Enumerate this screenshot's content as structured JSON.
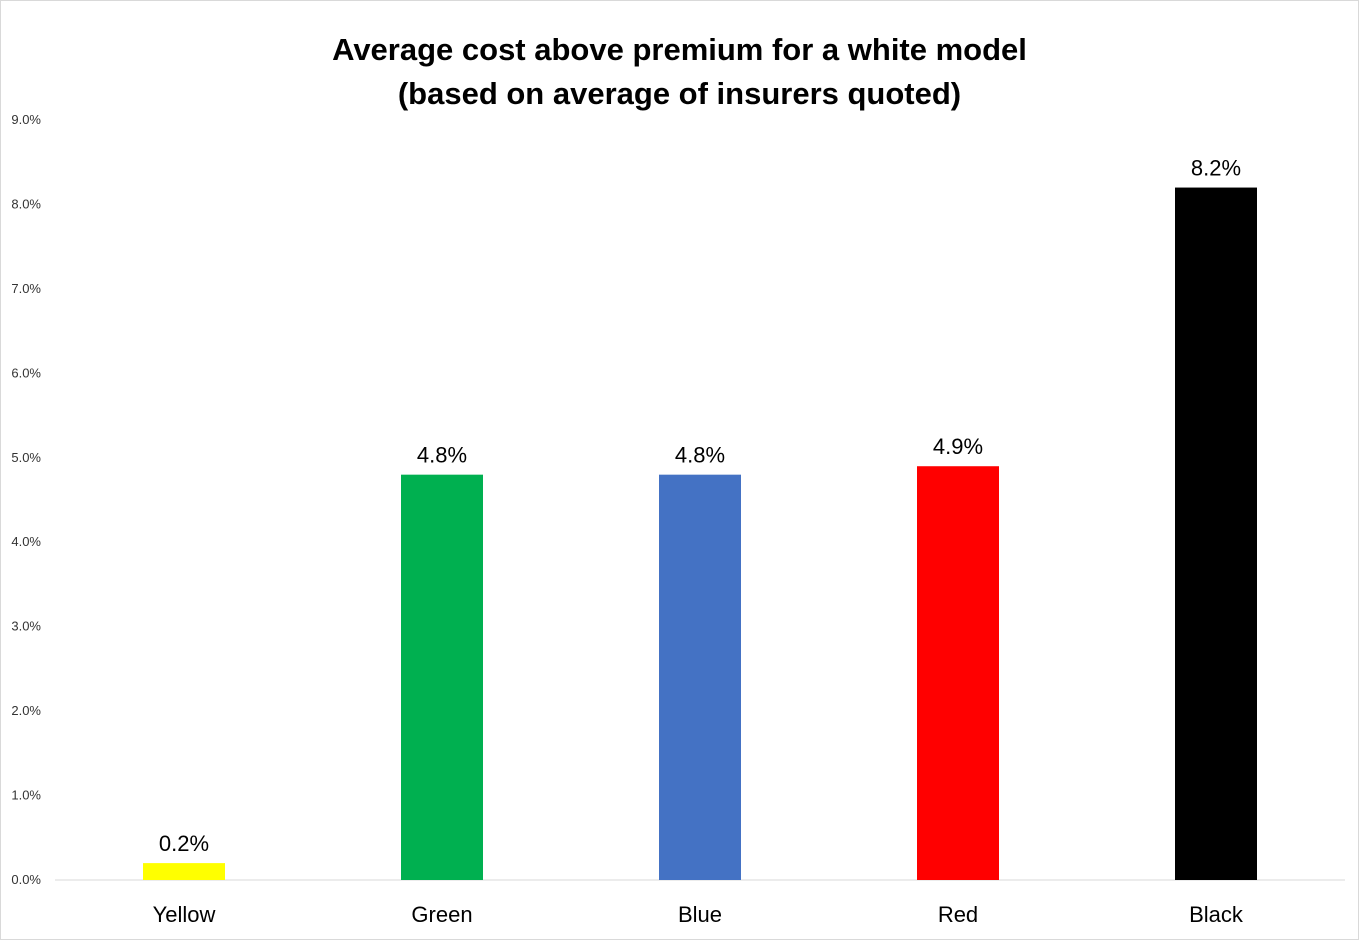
{
  "chart_data": {
    "type": "bar",
    "title_line1": "Average cost above premium for a white model",
    "title_line2": "(based on average of insurers quoted)",
    "categories": [
      "Yellow",
      "Green",
      "Blue",
      "Red",
      "Black"
    ],
    "values": [
      0.2,
      4.8,
      4.8,
      4.9,
      8.2
    ],
    "data_labels": [
      "0.2%",
      "4.8%",
      "4.8%",
      "4.9%",
      "8.2%"
    ],
    "colors": [
      "#FFFF00",
      "#00B050",
      "#4472C4",
      "#FF0000",
      "#000000"
    ],
    "ylim": [
      0,
      9
    ],
    "yticks": [
      "0.0%",
      "1.0%",
      "2.0%",
      "3.0%",
      "4.0%",
      "5.0%",
      "6.0%",
      "7.0%",
      "8.0%",
      "9.0%"
    ],
    "grid": false,
    "legend": "none"
  }
}
